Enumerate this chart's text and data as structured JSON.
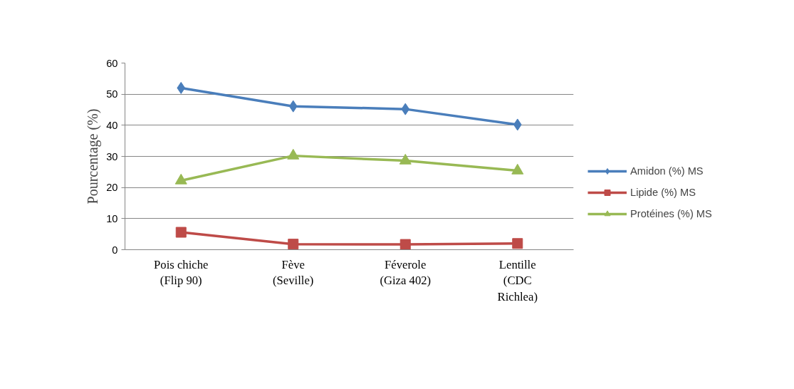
{
  "chart_data": {
    "type": "line",
    "ylabel": "Pourcentage (%)",
    "categories": [
      "Pois chiche\n(Flip 90)",
      "Fève\n(Seville)",
      "Féverole\n(Giza 402)",
      "Lentille\n(CDC\nRichlea)"
    ],
    "series": [
      {
        "name": "Amidon (%) MS",
        "color": "#4a7ebb",
        "marker": "diamond",
        "values": [
          52,
          46.1,
          45.2,
          40.2
        ]
      },
      {
        "name": "Lipide (%) MS",
        "color": "#be4b48",
        "marker": "square",
        "values": [
          5.6,
          1.8,
          1.7,
          2.0
        ]
      },
      {
        "name": "Protéines (%) MS",
        "color": "#98b954",
        "marker": "triangle",
        "values": [
          22.2,
          30.2,
          28.6,
          25.4
        ]
      }
    ],
    "ylim": [
      0,
      60
    ],
    "yticks": [
      0,
      10,
      20,
      30,
      40,
      50,
      60
    ],
    "grid": "y",
    "legend": "right",
    "line_style": "solid"
  }
}
